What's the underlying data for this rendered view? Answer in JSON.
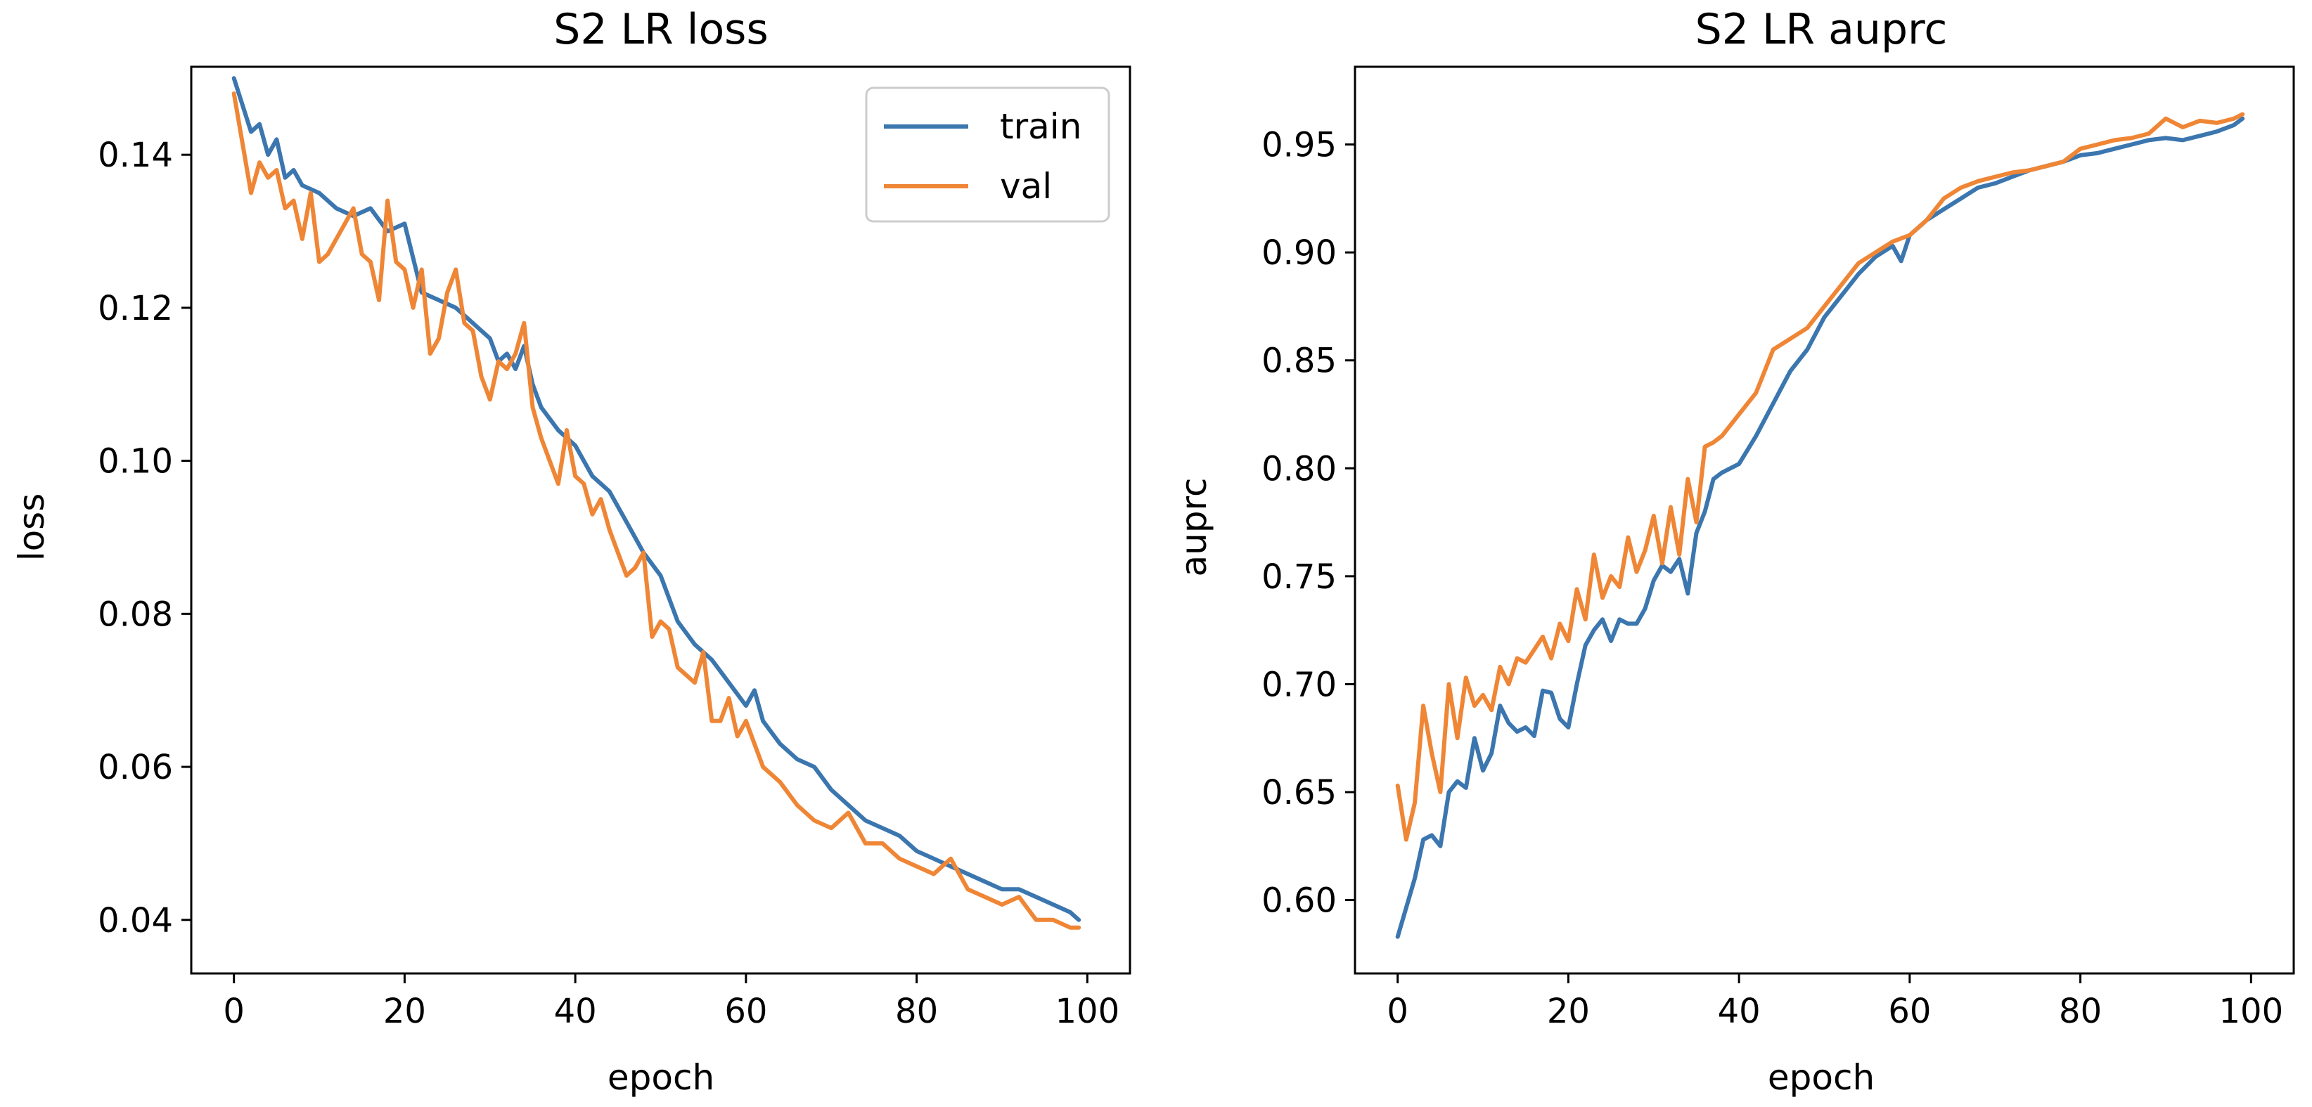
{
  "colors": {
    "train": "#3b76af",
    "val": "#ef8636"
  },
  "chart_data": [
    {
      "type": "line",
      "title": "S2 LR loss",
      "xlabel": "epoch",
      "ylabel": "loss",
      "xlim": [
        -5,
        105
      ],
      "ylim": [
        0.033,
        0.1515
      ],
      "xticks": [
        0,
        20,
        40,
        60,
        80,
        100
      ],
      "xtick_labels": [
        "0",
        "20",
        "40",
        "60",
        "80",
        "100"
      ],
      "yticks": [
        0.04,
        0.06,
        0.08,
        0.1,
        0.12,
        0.14
      ],
      "ytick_labels": [
        "0.04",
        "0.06",
        "0.08",
        "0.10",
        "0.12",
        "0.14"
      ],
      "legend": {
        "position": "top-right",
        "entries": [
          "train",
          "val"
        ]
      },
      "series": [
        {
          "name": "train",
          "color_key": "train",
          "x": [
            0,
            2,
            3,
            4,
            5,
            6,
            7,
            8,
            10,
            12,
            14,
            16,
            18,
            20,
            22,
            24,
            26,
            28,
            30,
            31,
            32,
            33,
            34,
            35,
            36,
            38,
            40,
            42,
            44,
            46,
            48,
            50,
            52,
            54,
            56,
            58,
            60,
            61,
            62,
            64,
            66,
            68,
            70,
            72,
            74,
            76,
            78,
            80,
            82,
            84,
            86,
            88,
            90,
            92,
            94,
            96,
            98,
            99
          ],
          "y": [
            0.15,
            0.143,
            0.144,
            0.14,
            0.142,
            0.137,
            0.138,
            0.136,
            0.135,
            0.133,
            0.132,
            0.133,
            0.13,
            0.131,
            0.122,
            0.121,
            0.12,
            0.118,
            0.116,
            0.113,
            0.114,
            0.112,
            0.115,
            0.11,
            0.107,
            0.104,
            0.102,
            0.098,
            0.096,
            0.092,
            0.088,
            0.085,
            0.079,
            0.076,
            0.074,
            0.071,
            0.068,
            0.07,
            0.066,
            0.063,
            0.061,
            0.06,
            0.057,
            0.055,
            0.053,
            0.052,
            0.051,
            0.049,
            0.048,
            0.047,
            0.046,
            0.045,
            0.044,
            0.044,
            0.043,
            0.042,
            0.041,
            0.04
          ]
        },
        {
          "name": "val",
          "color_key": "val",
          "x": [
            0,
            2,
            3,
            4,
            5,
            6,
            7,
            8,
            9,
            10,
            11,
            12,
            13,
            14,
            15,
            16,
            17,
            18,
            19,
            20,
            21,
            22,
            23,
            24,
            25,
            26,
            27,
            28,
            29,
            30,
            31,
            32,
            33,
            34,
            35,
            36,
            37,
            38,
            39,
            40,
            41,
            42,
            43,
            44,
            45,
            46,
            47,
            48,
            49,
            50,
            51,
            52,
            53,
            54,
            55,
            56,
            57,
            58,
            59,
            60,
            62,
            64,
            66,
            68,
            70,
            72,
            74,
            76,
            78,
            80,
            82,
            84,
            86,
            88,
            90,
            92,
            94,
            96,
            98,
            99
          ],
          "y": [
            0.148,
            0.135,
            0.139,
            0.137,
            0.138,
            0.133,
            0.134,
            0.129,
            0.135,
            0.126,
            0.127,
            0.129,
            0.131,
            0.133,
            0.127,
            0.126,
            0.121,
            0.134,
            0.126,
            0.125,
            0.12,
            0.125,
            0.114,
            0.116,
            0.122,
            0.125,
            0.118,
            0.117,
            0.111,
            0.108,
            0.113,
            0.112,
            0.114,
            0.118,
            0.107,
            0.103,
            0.1,
            0.097,
            0.104,
            0.098,
            0.097,
            0.093,
            0.095,
            0.091,
            0.088,
            0.085,
            0.086,
            0.088,
            0.077,
            0.079,
            0.078,
            0.073,
            0.072,
            0.071,
            0.075,
            0.066,
            0.066,
            0.069,
            0.064,
            0.066,
            0.06,
            0.058,
            0.055,
            0.053,
            0.052,
            0.054,
            0.05,
            0.05,
            0.048,
            0.047,
            0.046,
            0.048,
            0.044,
            0.043,
            0.042,
            0.043,
            0.04,
            0.04,
            0.039,
            0.039
          ]
        }
      ]
    },
    {
      "type": "line",
      "title": "S2 LR auprc",
      "xlabel": "epoch",
      "ylabel": "auprc",
      "xlim": [
        -5,
        105
      ],
      "ylim": [
        0.566,
        0.986
      ],
      "xticks": [
        0,
        20,
        40,
        60,
        80,
        100
      ],
      "xtick_labels": [
        "0",
        "20",
        "40",
        "60",
        "80",
        "100"
      ],
      "yticks": [
        0.6,
        0.65,
        0.7,
        0.75,
        0.8,
        0.85,
        0.9,
        0.95
      ],
      "ytick_labels": [
        "0.60",
        "0.65",
        "0.70",
        "0.75",
        "0.80",
        "0.85",
        "0.90",
        "0.95"
      ],
      "legend": null,
      "series": [
        {
          "name": "train",
          "color_key": "train",
          "x": [
            0,
            2,
            3,
            4,
            5,
            6,
            7,
            8,
            9,
            10,
            11,
            12,
            13,
            14,
            15,
            16,
            17,
            18,
            19,
            20,
            21,
            22,
            23,
            24,
            25,
            26,
            27,
            28,
            29,
            30,
            31,
            32,
            33,
            34,
            35,
            36,
            37,
            38,
            40,
            42,
            44,
            46,
            48,
            50,
            52,
            54,
            56,
            58,
            59,
            60,
            62,
            64,
            66,
            68,
            70,
            72,
            74,
            76,
            78,
            80,
            82,
            84,
            86,
            88,
            90,
            92,
            94,
            96,
            98,
            99
          ],
          "y": [
            0.583,
            0.61,
            0.628,
            0.63,
            0.625,
            0.65,
            0.655,
            0.652,
            0.675,
            0.66,
            0.668,
            0.69,
            0.682,
            0.678,
            0.68,
            0.676,
            0.697,
            0.696,
            0.684,
            0.68,
            0.7,
            0.718,
            0.725,
            0.73,
            0.72,
            0.73,
            0.728,
            0.728,
            0.735,
            0.748,
            0.755,
            0.752,
            0.758,
            0.742,
            0.77,
            0.78,
            0.795,
            0.798,
            0.802,
            0.815,
            0.83,
            0.845,
            0.855,
            0.87,
            0.88,
            0.89,
            0.898,
            0.903,
            0.896,
            0.908,
            0.915,
            0.92,
            0.925,
            0.93,
            0.932,
            0.935,
            0.938,
            0.94,
            0.942,
            0.945,
            0.946,
            0.948,
            0.95,
            0.952,
            0.953,
            0.952,
            0.954,
            0.956,
            0.959,
            0.962
          ]
        },
        {
          "name": "val",
          "color_key": "val",
          "x": [
            0,
            1,
            2,
            3,
            4,
            5,
            6,
            7,
            8,
            9,
            10,
            11,
            12,
            13,
            14,
            15,
            16,
            17,
            18,
            19,
            20,
            21,
            22,
            23,
            24,
            25,
            26,
            27,
            28,
            29,
            30,
            31,
            32,
            33,
            34,
            35,
            36,
            37,
            38,
            40,
            42,
            44,
            46,
            48,
            50,
            52,
            54,
            56,
            58,
            60,
            62,
            64,
            66,
            68,
            70,
            72,
            74,
            76,
            78,
            80,
            82,
            84,
            86,
            88,
            90,
            92,
            94,
            96,
            98,
            99
          ],
          "y": [
            0.653,
            0.628,
            0.645,
            0.69,
            0.668,
            0.65,
            0.7,
            0.675,
            0.703,
            0.69,
            0.695,
            0.688,
            0.708,
            0.7,
            0.712,
            0.71,
            0.716,
            0.722,
            0.712,
            0.728,
            0.72,
            0.744,
            0.73,
            0.76,
            0.74,
            0.75,
            0.745,
            0.768,
            0.752,
            0.762,
            0.778,
            0.756,
            0.782,
            0.76,
            0.795,
            0.775,
            0.81,
            0.812,
            0.815,
            0.825,
            0.835,
            0.855,
            0.86,
            0.865,
            0.875,
            0.885,
            0.895,
            0.9,
            0.905,
            0.908,
            0.915,
            0.925,
            0.93,
            0.933,
            0.935,
            0.937,
            0.938,
            0.94,
            0.942,
            0.948,
            0.95,
            0.952,
            0.953,
            0.955,
            0.962,
            0.958,
            0.961,
            0.96,
            0.962,
            0.964
          ]
        }
      ]
    }
  ]
}
